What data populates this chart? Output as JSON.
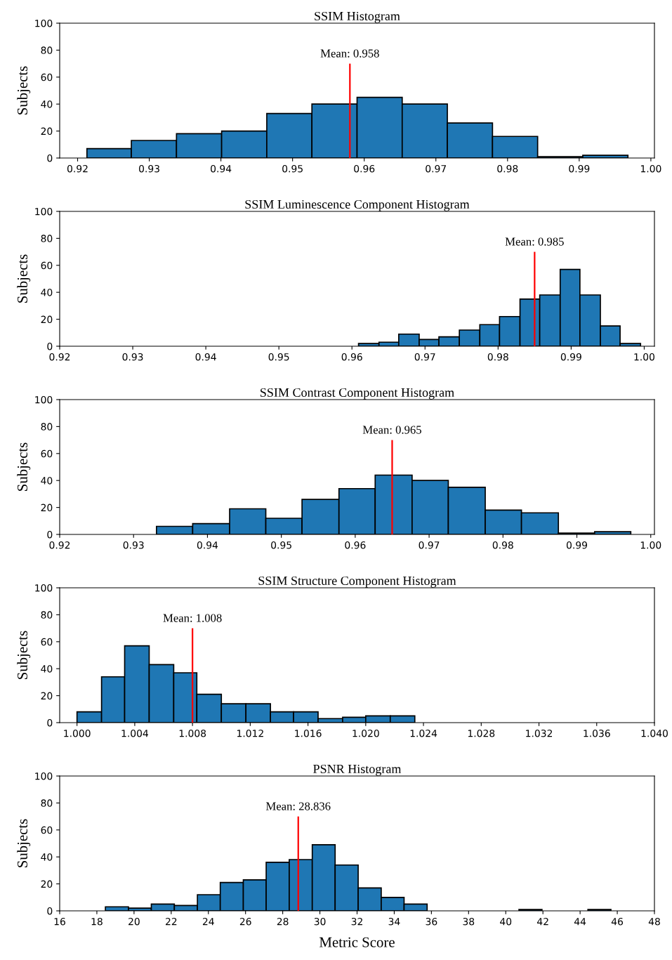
{
  "chart_data": [
    {
      "type": "histogram",
      "title": "SSIM Histogram",
      "ylabel": "Subjects",
      "bins": [
        0.9213,
        0.9275,
        0.9338,
        0.9401,
        0.9464,
        0.9527,
        0.959,
        0.9653,
        0.9716,
        0.9779,
        0.9842,
        0.9905,
        0.9968
      ],
      "values": [
        7,
        13,
        18,
        20,
        33,
        40,
        45,
        40,
        26,
        16,
        1,
        2
      ],
      "color": "#1f77b4",
      "xlim": [
        0.9175,
        1.0005
      ],
      "xticks": [
        0.92,
        0.93,
        0.94,
        0.95,
        0.96,
        0.97,
        0.98,
        0.99,
        {
          "value": 1.0,
          "label": "1.00"
        }
      ],
      "ylim": [
        0,
        100
      ],
      "yticks": [
        0,
        20,
        40,
        60,
        80,
        100
      ],
      "ref_lines": [
        {
          "axis": "x",
          "value": 0.958,
          "color": "#ff0000"
        }
      ],
      "annotations": [
        {
          "text": "Mean: 0.958",
          "x": 0.958,
          "y": 70
        }
      ]
    },
    {
      "type": "histogram",
      "title": "SSIM Luminescence Component Histogram",
      "ylabel": "Subjects",
      "bins": [
        0.9609,
        0.9637,
        0.9664,
        0.9692,
        0.9719,
        0.9747,
        0.9775,
        0.9802,
        0.983,
        0.9857,
        0.9885,
        0.9912,
        0.994,
        0.9967,
        0.9995
      ],
      "values": [
        2,
        3,
        9,
        5,
        7,
        12,
        16,
        22,
        35,
        38,
        57,
        38,
        15,
        2
      ],
      "color": "#1f77b4",
      "xlim": [
        0.92,
        1.0014
      ],
      "xticks": [
        0.92,
        0.93,
        0.94,
        0.95,
        0.96,
        0.97,
        0.98,
        0.99,
        {
          "value": 1.0,
          "label": "1.00"
        }
      ],
      "ylim": [
        0,
        100
      ],
      "yticks": [
        0,
        20,
        40,
        60,
        80,
        100
      ],
      "ref_lines": [
        {
          "axis": "x",
          "value": 0.985,
          "color": "#ff0000"
        }
      ],
      "annotations": [
        {
          "text": "Mean: 0.985",
          "x": 0.985,
          "y": 70
        }
      ]
    },
    {
      "type": "histogram",
      "title": "SSIM Contrast Component Histogram",
      "ylabel": "Subjects",
      "bins": [
        0.9331,
        0.938,
        0.943,
        0.9479,
        0.9528,
        0.9578,
        0.9627,
        0.9677,
        0.9726,
        0.9776,
        0.9825,
        0.9875,
        0.9924,
        0.9973
      ],
      "values": [
        6,
        8,
        19,
        12,
        26,
        34,
        44,
        40,
        35,
        18,
        16,
        1,
        2
      ],
      "color": "#1f77b4",
      "xlim": [
        0.92,
        1.0005
      ],
      "xticks": [
        0.92,
        0.93,
        0.94,
        0.95,
        0.96,
        0.97,
        0.98,
        0.99,
        {
          "value": 1.0,
          "label": "1.00"
        }
      ],
      "ylim": [
        0,
        100
      ],
      "yticks": [
        0,
        20,
        40,
        60,
        80,
        100
      ],
      "ref_lines": [
        {
          "axis": "x",
          "value": 0.965,
          "color": "#ff0000"
        }
      ],
      "annotations": [
        {
          "text": "Mean: 0.965",
          "x": 0.965,
          "y": 70
        }
      ]
    },
    {
      "type": "histogram",
      "title": "SSIM Structure Component Histogram",
      "ylabel": "Subjects",
      "bins": [
        1.0,
        1.0017,
        1.0033,
        1.005,
        1.0067,
        1.0083,
        1.01,
        1.0117,
        1.0134,
        1.015,
        1.0167,
        1.0184,
        1.02,
        1.0217,
        1.0234
      ],
      "values": [
        8,
        34,
        57,
        43,
        37,
        21,
        14,
        14,
        8,
        8,
        3,
        4,
        5,
        5
      ],
      "color": "#1f77b4",
      "xlim": [
        0.9988,
        1.04
      ],
      "xticks": [
        {
          "value": 1.0,
          "label": "1.000"
        },
        1.004,
        1.008,
        1.012,
        1.016,
        {
          "value": 1.02,
          "label": "1.020"
        },
        1.024,
        1.028,
        1.032,
        1.036,
        {
          "value": 1.04,
          "label": "1.040"
        }
      ],
      "ylim": [
        0,
        100
      ],
      "yticks": [
        0,
        20,
        40,
        60,
        80,
        100
      ],
      "ref_lines": [
        {
          "axis": "x",
          "value": 1.008,
          "color": "#ff0000"
        }
      ],
      "annotations": [
        {
          "text": "Mean: 1.008",
          "x": 1.008,
          "y": 70
        }
      ]
    },
    {
      "type": "histogram",
      "title": "PSNR Histogram",
      "ylabel": "Subjects",
      "xlabel": "Metric Score",
      "bins": [
        18.46,
        19.7,
        20.93,
        22.17,
        23.41,
        24.64,
        25.88,
        27.11,
        28.35,
        29.59,
        30.82,
        32.06,
        33.3,
        34.53,
        35.77,
        37.01,
        38.24,
        39.48,
        40.71,
        41.95,
        43.19,
        44.42,
        45.66
      ],
      "values": [
        3,
        2,
        5,
        4,
        12,
        21,
        23,
        36,
        38,
        49,
        34,
        17,
        10,
        5,
        0,
        0,
        0,
        0,
        1,
        0,
        0,
        1
      ],
      "color": "#1f77b4",
      "xlim": [
        16,
        48
      ],
      "xticks": [
        16,
        18,
        20,
        22,
        24,
        26,
        28,
        30,
        32,
        34,
        36,
        38,
        40,
        42,
        44,
        46,
        48
      ],
      "ylim": [
        0,
        100
      ],
      "yticks": [
        0,
        20,
        40,
        60,
        80,
        100
      ],
      "ref_lines": [
        {
          "axis": "x",
          "value": 28.836,
          "color": "#ff0000"
        }
      ],
      "annotations": [
        {
          "text": "Mean: 28.836",
          "x": 28.836,
          "y": 70
        }
      ]
    }
  ]
}
